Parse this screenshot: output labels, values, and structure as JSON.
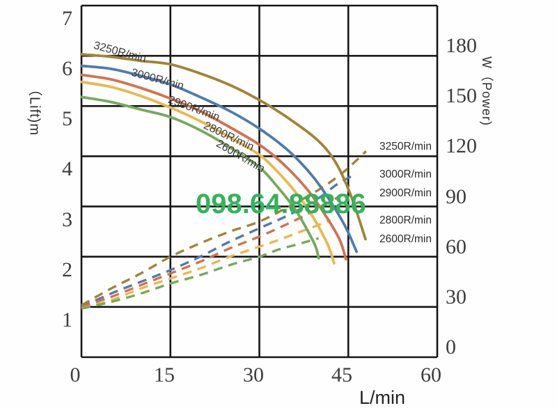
{
  "watermark": {
    "text": "098.64.88886",
    "color": "#33b35a"
  },
  "axes": {
    "x": {
      "title": "L/min",
      "ticks": [
        "0",
        "15",
        "30",
        "45",
        "60"
      ]
    },
    "left": {
      "title": "（Lift)m",
      "ticks": [
        "7",
        "6",
        "5",
        "4",
        "3",
        "2",
        "1"
      ]
    },
    "right": {
      "title": "W（Power)",
      "ticks": [
        "180",
        "150",
        "120",
        "90",
        "60",
        "30",
        "0"
      ]
    }
  },
  "legend": {
    "items": [
      "3250R/min",
      "3000R/min",
      "2900R/min",
      "2800R/min",
      "2600R/min"
    ]
  },
  "curve_labels": [
    {
      "text": "3250R/min"
    },
    {
      "text": "3000R/min"
    },
    {
      "text": "2900R/min"
    },
    {
      "text": "2800R/min"
    },
    {
      "text": "2600R/min"
    }
  ],
  "chart_data": {
    "type": "line",
    "title": "",
    "xlabel": "L/min",
    "x_range": [
      0,
      60
    ],
    "x_ticks": [
      0,
      15,
      30,
      45,
      60
    ],
    "y_left": {
      "label": "(Lift) m",
      "range": [
        0,
        7
      ],
      "ticks": [
        1,
        2,
        3,
        4,
        5,
        6,
        7
      ]
    },
    "y_right": {
      "label": "W (Power)",
      "range": [
        0,
        210
      ],
      "ticks": [
        0,
        30,
        60,
        90,
        120,
        150,
        180
      ]
    },
    "grid": "on",
    "legend_position": "right-inside",
    "note": "Solid curves: lift (m, left axis) vs flow. Dashed curves: power (W, right axis) vs flow. Right-side labels mark dashed curve endpoints.",
    "lift_series": [
      {
        "name": "3250R/min",
        "color": "#a18434",
        "style": "solid",
        "points": [
          [
            0,
            6.03
          ],
          [
            5,
            5.98
          ],
          [
            10,
            5.9
          ],
          [
            15,
            5.83
          ],
          [
            20,
            5.65
          ],
          [
            25,
            5.42
          ],
          [
            30,
            5.12
          ],
          [
            35,
            4.75
          ],
          [
            40,
            4.3
          ],
          [
            43,
            3.85
          ],
          [
            45.5,
            3.2
          ],
          [
            47.9,
            2.35
          ]
        ]
      },
      {
        "name": "3000R/min",
        "color": "#4e7cad",
        "style": "solid",
        "points": [
          [
            0,
            5.8
          ],
          [
            5,
            5.74
          ],
          [
            10,
            5.6
          ],
          [
            15,
            5.43
          ],
          [
            20,
            5.18
          ],
          [
            25,
            4.9
          ],
          [
            30,
            4.55
          ],
          [
            35,
            4.1
          ],
          [
            39,
            3.6
          ],
          [
            42,
            3.1
          ],
          [
            44.5,
            2.6
          ],
          [
            46.4,
            2.1
          ]
        ]
      },
      {
        "name": "2900R/min",
        "color": "#d4714e",
        "style": "solid",
        "points": [
          [
            0,
            5.62
          ],
          [
            5,
            5.53
          ],
          [
            10,
            5.36
          ],
          [
            15,
            5.15
          ],
          [
            20,
            4.9
          ],
          [
            25,
            4.58
          ],
          [
            30,
            4.23
          ],
          [
            34,
            3.85
          ],
          [
            38,
            3.35
          ],
          [
            41,
            2.85
          ],
          [
            43.5,
            2.35
          ],
          [
            44.6,
            1.95
          ]
        ]
      },
      {
        "name": "2800R/min",
        "color": "#e9b94d",
        "style": "solid",
        "points": [
          [
            0,
            5.48
          ],
          [
            5,
            5.38
          ],
          [
            10,
            5.2
          ],
          [
            15,
            4.97
          ],
          [
            20,
            4.7
          ],
          [
            25,
            4.38
          ],
          [
            30,
            4.03
          ],
          [
            33,
            3.7
          ],
          [
            36,
            3.3
          ],
          [
            39,
            2.8
          ],
          [
            41.5,
            2.25
          ],
          [
            42.6,
            1.87
          ]
        ]
      },
      {
        "name": "2600R/min",
        "color": "#76a95c",
        "style": "solid",
        "points": [
          [
            0,
            5.18
          ],
          [
            5,
            5.08
          ],
          [
            10,
            4.93
          ],
          [
            15,
            4.78
          ],
          [
            20,
            4.52
          ],
          [
            25,
            4.18
          ],
          [
            30,
            3.78
          ],
          [
            33,
            3.4
          ],
          [
            36,
            2.95
          ],
          [
            38,
            2.55
          ],
          [
            39.5,
            2.2
          ],
          [
            40,
            1.97
          ]
        ]
      }
    ],
    "power_series": [
      {
        "name": "3250R/min",
        "color": "#a18434",
        "style": "dashed",
        "points": [
          [
            0,
            31
          ],
          [
            5,
            41
          ],
          [
            10,
            50
          ],
          [
            15,
            60
          ],
          [
            20,
            68
          ],
          [
            25,
            75
          ],
          [
            30,
            81
          ],
          [
            35,
            90
          ],
          [
            40,
            100
          ],
          [
            44,
            110
          ],
          [
            48,
            123
          ]
        ]
      },
      {
        "name": "3000R/min",
        "color": "#4e7cad",
        "style": "dashed",
        "points": [
          [
            0,
            30
          ],
          [
            5,
            38
          ],
          [
            10,
            45
          ],
          [
            15,
            52
          ],
          [
            20,
            60
          ],
          [
            25,
            69
          ],
          [
            30,
            77
          ],
          [
            35,
            85
          ],
          [
            40,
            95
          ],
          [
            43,
            103
          ],
          [
            45.5,
            108
          ]
        ]
      },
      {
        "name": "2900R/min",
        "color": "#d4714e",
        "style": "dashed",
        "points": [
          [
            0,
            30
          ],
          [
            5,
            36
          ],
          [
            10,
            43
          ],
          [
            15,
            50
          ],
          [
            20,
            57
          ],
          [
            25,
            65
          ],
          [
            30,
            72
          ],
          [
            35,
            80
          ],
          [
            39,
            87
          ],
          [
            42,
            93
          ],
          [
            44,
            97
          ]
        ]
      },
      {
        "name": "2800R/min",
        "color": "#e9b94d",
        "style": "dashed",
        "points": [
          [
            0,
            29
          ],
          [
            5,
            34
          ],
          [
            10,
            41
          ],
          [
            15,
            47
          ],
          [
            20,
            53
          ],
          [
            25,
            60
          ],
          [
            30,
            66
          ],
          [
            34,
            71
          ],
          [
            37,
            75
          ],
          [
            40,
            79
          ],
          [
            42,
            82
          ]
        ]
      },
      {
        "name": "2600R/min",
        "color": "#76a95c",
        "style": "dashed",
        "points": [
          [
            0,
            29
          ],
          [
            5,
            33
          ],
          [
            10,
            38
          ],
          [
            15,
            44
          ],
          [
            20,
            49
          ],
          [
            25,
            55
          ],
          [
            30,
            60
          ],
          [
            33,
            64
          ],
          [
            36,
            67
          ],
          [
            38,
            69
          ],
          [
            40,
            71
          ]
        ]
      }
    ]
  }
}
